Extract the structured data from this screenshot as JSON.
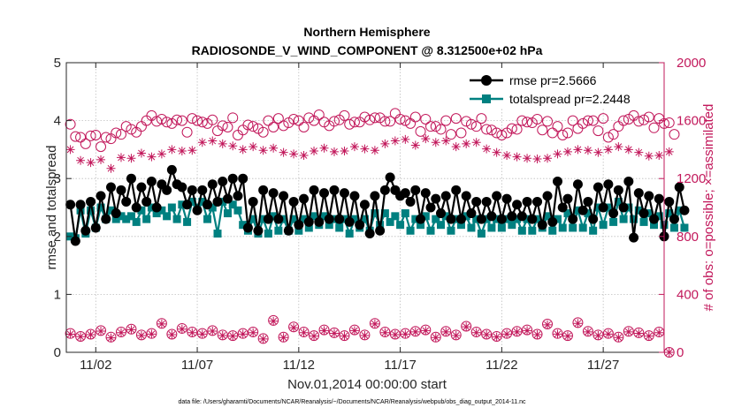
{
  "chart_data": {
    "type": "line",
    "title": "Northern Hemisphere",
    "subtitle": "RADIOSONDE_V_WIND_COMPONENT @ 8.312500e+02 hPa",
    "xlabel": "Nov.01,2014 00:00:00 start",
    "ylabel_left": "rmse and totalspread",
    "ylabel_right": "# of obs: o=possible; ×=assimilated",
    "ylim_left": [
      0,
      5
    ],
    "ylim_right": [
      0,
      2000
    ],
    "xlim_days": [
      0.55,
      30.0
    ],
    "left_ticks": [
      "0",
      "1",
      "2",
      "3",
      "4",
      "5"
    ],
    "right_ticks": [
      "0",
      "400",
      "800",
      "1200",
      "1600",
      "2000"
    ],
    "x_ticks": [
      {
        "day": 2,
        "label": "11/02"
      },
      {
        "day": 7,
        "label": "11/07"
      },
      {
        "day": 12,
        "label": "11/12"
      },
      {
        "day": 17,
        "label": "11/17"
      },
      {
        "day": 22,
        "label": "11/22"
      },
      {
        "day": 27,
        "label": "11/27"
      }
    ],
    "footnote": "data file: /Users/gharamti/Documents/NCAR/Reanalysis/~/Documents/NCAR/Reanalysis/webpub/obs_diag_output_2014-11.nc",
    "legend": [
      {
        "label": "rmse pr=2.5666",
        "color": "#000000",
        "marker": "circle"
      },
      {
        "label": "totalspread pr=2.2448",
        "color": "#008080",
        "marker": "square"
      }
    ],
    "colors": {
      "rmse": "#000000",
      "spread": "#008080",
      "obs": "#c2185b"
    },
    "series": [
      {
        "name": "rmse",
        "axis": "left",
        "x_start": 0.75,
        "x_step": 0.25,
        "values": [
          2.55,
          1.92,
          2.55,
          2.1,
          2.6,
          2.15,
          2.7,
          2.3,
          2.85,
          2.4,
          2.8,
          2.6,
          3.0,
          2.5,
          2.85,
          2.6,
          2.95,
          2.5,
          2.9,
          2.8,
          3.15,
          2.9,
          2.85,
          2.55,
          2.8,
          2.45,
          2.8,
          2.55,
          2.9,
          2.6,
          2.95,
          2.65,
          3.0,
          2.7,
          3.0,
          2.15,
          2.6,
          2.1,
          2.8,
          2.3,
          2.75,
          2.3,
          2.7,
          2.1,
          2.6,
          2.2,
          2.65,
          2.25,
          2.8,
          2.25,
          2.75,
          2.3,
          2.8,
          2.3,
          2.75,
          2.25,
          2.7,
          2.2,
          2.55,
          2.05,
          2.7,
          2.1,
          2.8,
          3.02,
          2.8,
          2.7,
          2.75,
          2.6,
          2.8,
          2.3,
          2.75,
          2.5,
          2.65,
          2.4,
          2.7,
          2.3,
          2.8,
          2.3,
          2.7,
          2.4,
          2.6,
          2.3,
          2.6,
          2.35,
          2.7,
          2.3,
          2.65,
          2.35,
          2.55,
          2.35,
          2.6,
          2.3,
          2.6,
          2.2,
          2.7,
          2.25,
          2.95,
          2.5,
          2.65,
          2.3,
          2.9,
          2.45,
          2.6,
          2.3,
          2.85,
          2.5,
          2.9,
          2.4,
          2.8,
          2.5,
          2.95,
          1.98,
          2.75,
          2.4,
          2.7,
          2.3,
          2.65,
          2.0,
          2.6,
          2.3,
          2.85,
          2.45
        ]
      },
      {
        "name": "totalspread",
        "axis": "left",
        "x_start": 0.75,
        "x_step": 0.25,
        "values": [
          2.0,
          1.97,
          2.45,
          2.05,
          2.45,
          2.15,
          2.5,
          2.3,
          2.45,
          2.3,
          2.35,
          2.3,
          2.35,
          2.25,
          2.45,
          2.3,
          2.5,
          2.4,
          2.45,
          2.35,
          2.5,
          2.3,
          2.55,
          2.25,
          2.6,
          2.5,
          2.6,
          2.3,
          2.5,
          2.05,
          2.6,
          2.4,
          2.55,
          2.45,
          2.2,
          2.1,
          2.3,
          2.05,
          2.3,
          2.05,
          2.35,
          2.1,
          2.3,
          2.1,
          2.3,
          2.1,
          2.3,
          2.15,
          2.35,
          2.2,
          2.35,
          2.2,
          2.3,
          2.15,
          2.3,
          2.05,
          2.3,
          2.15,
          2.3,
          2.1,
          2.4,
          2.2,
          2.4,
          2.25,
          2.35,
          2.2,
          2.4,
          2.1,
          2.3,
          2.2,
          2.35,
          2.1,
          2.3,
          2.2,
          2.35,
          2.1,
          2.3,
          2.2,
          2.35,
          2.15,
          2.3,
          2.05,
          2.3,
          2.15,
          2.3,
          2.15,
          2.3,
          2.2,
          2.3,
          2.1,
          2.3,
          2.1,
          2.3,
          2.15,
          2.35,
          2.1,
          2.3,
          2.15,
          2.4,
          2.15,
          2.45,
          2.15,
          2.4,
          2.1,
          2.5,
          2.2,
          2.5,
          2.25,
          2.6,
          2.3,
          2.5,
          2.3,
          2.45,
          2.25,
          2.4,
          2.2,
          2.35,
          2.2,
          2.4,
          2.15,
          2.45,
          2.15
        ]
      },
      {
        "name": "possible_obs_00Z12Z",
        "axis": "right",
        "x_start": 0.75,
        "x_step": 0.5,
        "values": [
          1575,
          1485,
          1495,
          1420,
          1475,
          1505,
          1540,
          1560,
          1635,
          1610,
          1580,
          1600,
          1615,
          1590,
          1605,
          1565,
          1620,
          1535,
          1560,
          1520,
          1555,
          1565,
          1610,
          1555,
          1600,
          1590,
          1595,
          1635,
          1590,
          1625,
          1620,
          1595,
          1650,
          1600,
          1625,
          1610,
          1560,
          1600,
          1615,
          1595,
          1560,
          1540,
          1515,
          1515,
          1540,
          1590,
          1610,
          1595,
          1560,
          1515,
          1545,
          1600,
          1530,
          1485,
          1560,
          1610,
          1595,
          1625,
          1615,
          1585
        ]
      },
      {
        "name": "possible_obs_06Z18Z",
        "axis": "right",
        "x_start": 1.0,
        "x_step": 0.5,
        "values": [
          1490,
          1440,
          1500,
          1485,
          1515,
          1560,
          1520,
          1600,
          1595,
          1590,
          1605,
          1520,
          1600,
          1580,
          1530,
          1555,
          1500,
          1570,
          1545,
          1600,
          1615,
          1585,
          1600,
          1620,
          1640,
          1565,
          1605,
          1575,
          1590,
          1605,
          1620,
          1595,
          1610,
          1580,
          1525,
          1560,
          1540,
          1505,
          1515,
          1575,
          1615,
          1535,
          1500,
          1545,
          1600,
          1585,
          1535,
          1515,
          1500,
          1600,
          1580,
          1600,
          1615,
          1505,
          1600,
          1635,
          1605,
          1550,
          1580,
          1505
        ]
      },
      {
        "name": "assimilated_obs",
        "axis": "right",
        "x_start": 0.75,
        "x_step": 0.5,
        "values": [
          1400,
          1325,
          1310,
          1330,
          1270,
          1345,
          1340,
          1375,
          1350,
          1370,
          1400,
          1390,
          1395,
          1450,
          1460,
          1440,
          1425,
          1400,
          1420,
          1395,
          1410,
          1380,
          1370,
          1360,
          1390,
          1410,
          1385,
          1390,
          1420,
          1405,
          1395,
          1440,
          1460,
          1470,
          1430,
          1475,
          1450,
          1460,
          1420,
          1440,
          1450,
          1405,
          1380,
          1360,
          1350,
          1340,
          1335,
          1340,
          1370,
          1385,
          1400,
          1395,
          1380,
          1400,
          1420,
          1400,
          1380,
          1355,
          1360,
          1385
        ]
      },
      {
        "name": "possible_obs_low",
        "axis": "right",
        "x_start": 0.75,
        "x_step": 0.5,
        "values": [
          130,
          110,
          125,
          150,
          105,
          140,
          160,
          120,
          130,
          200,
          125,
          165,
          140,
          130,
          150,
          120,
          115,
          130,
          140,
          95,
          220,
          105,
          175,
          140,
          115,
          155,
          135,
          115,
          155,
          120,
          200,
          140,
          125,
          130,
          145,
          155,
          105,
          145,
          120,
          180,
          140,
          125,
          110,
          130,
          145,
          155,
          125,
          195,
          130,
          115,
          205,
          145,
          120,
          130,
          105,
          145,
          135,
          115,
          140,
          0
        ]
      },
      {
        "name": "assimilated_obs_low",
        "axis": "right",
        "x_start": 0.75,
        "x_step": 0.5,
        "values": [
          125,
          108,
          122,
          146,
          100,
          136,
          156,
          116,
          126,
          196,
          122,
          160,
          136,
          126,
          146,
          116,
          112,
          126,
          136,
          92,
          215,
          102,
          170,
          136,
          112,
          150,
          131,
          112,
          150,
          116,
          196,
          136,
          122,
          126,
          141,
          150,
          102,
          141,
          116,
          176,
          136,
          122,
          106,
          126,
          141,
          150,
          122,
          190,
          126,
          112,
          200,
          141,
          116,
          126,
          102,
          141,
          131,
          112,
          136,
          0
        ]
      }
    ]
  }
}
